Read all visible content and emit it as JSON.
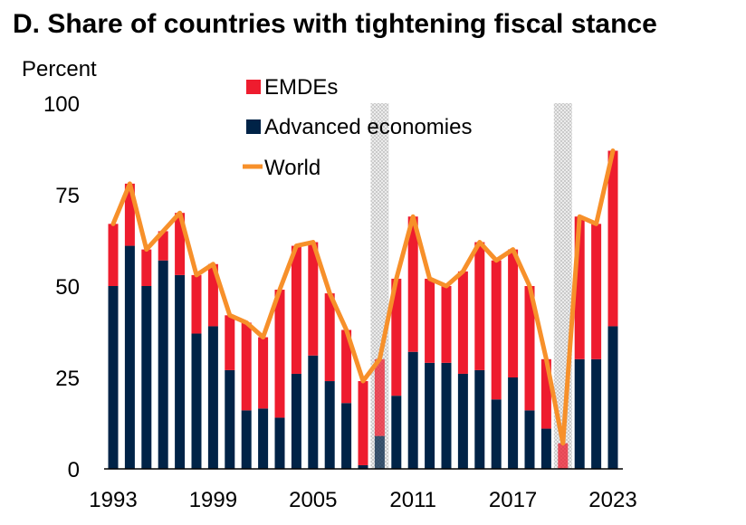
{
  "chart_data": {
    "type": "bar",
    "title": "D. Share of countries with tightening fiscal stance",
    "ylabel": "Percent",
    "xlabel": "",
    "ylim": [
      0,
      100
    ],
    "yticks": [
      0,
      25,
      50,
      75,
      100
    ],
    "xtick_labels": [
      "1993",
      "1999",
      "2005",
      "2011",
      "2017",
      "2023"
    ],
    "x": [
      1993,
      1994,
      1995,
      1996,
      1997,
      1998,
      1999,
      2000,
      2001,
      2002,
      2003,
      2004,
      2005,
      2006,
      2007,
      2008,
      2009,
      2010,
      2011,
      2012,
      2013,
      2014,
      2015,
      2016,
      2017,
      2018,
      2019,
      2020,
      2021,
      2022,
      2023
    ],
    "shaded_years": [
      2009,
      2020
    ],
    "series": [
      {
        "name": "Advanced economies",
        "kind": "bar-stacked",
        "color": "#002347",
        "values": [
          50,
          61,
          50,
          57,
          53,
          37,
          39,
          27,
          16,
          16.5,
          14,
          26,
          31,
          24,
          18,
          1,
          9,
          20,
          32,
          29,
          29,
          26,
          27,
          19,
          25,
          16,
          11,
          0,
          30,
          30,
          39
        ]
      },
      {
        "name": "EMDEs",
        "kind": "bar-stacked",
        "color": "#EE1C2E",
        "values": [
          17,
          17,
          10,
          8,
          17,
          16,
          17,
          15,
          24,
          19.5,
          35,
          35,
          31,
          24,
          20,
          23,
          21,
          32,
          37,
          23,
          21,
          28,
          35,
          38,
          35,
          34,
          19,
          7,
          39,
          37,
          48
        ]
      },
      {
        "name": "World",
        "kind": "line",
        "color": "#F7902A",
        "values": [
          67,
          78,
          60,
          65,
          70,
          53,
          56,
          42,
          40,
          36,
          49,
          61,
          62,
          48,
          38,
          24,
          30,
          52,
          69,
          52,
          50,
          54,
          62,
          57,
          60,
          50,
          30,
          7,
          69,
          67,
          87
        ]
      }
    ],
    "legend_position": "top-center"
  }
}
